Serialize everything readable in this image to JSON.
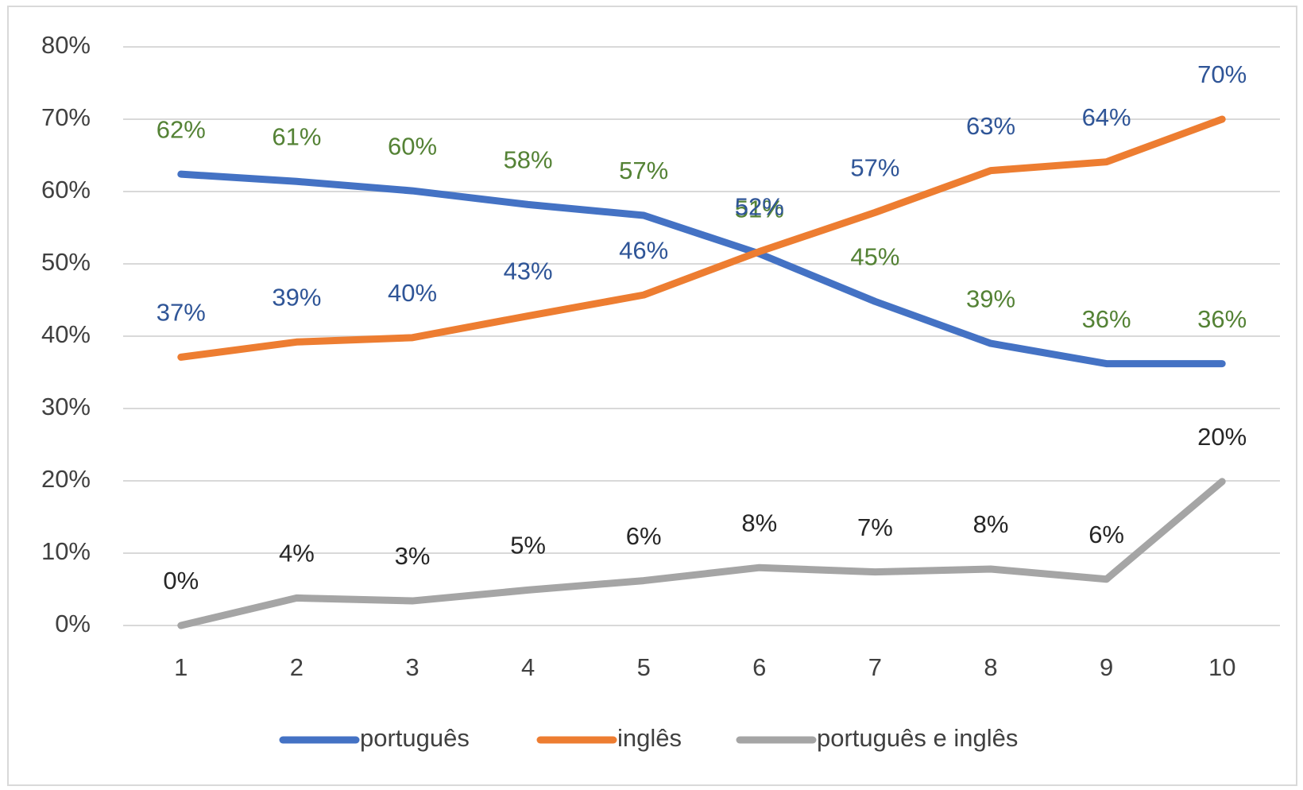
{
  "chart_data": {
    "type": "line",
    "categories": [
      "1",
      "2",
      "3",
      "4",
      "5",
      "6",
      "7",
      "8",
      "9",
      "10"
    ],
    "series": [
      {
        "name": "português",
        "color": "#4472c4",
        "label_color": "#548235",
        "values": [
          62.4,
          61.4,
          60.1,
          58.2,
          56.7,
          51.4,
          44.8,
          39.0,
          36.2,
          36.2
        ],
        "value_labels": [
          "62%",
          "61%",
          "60%",
          "58%",
          "57%",
          "51%",
          "45%",
          "39%",
          "36%",
          "36%"
        ]
      },
      {
        "name": "inglês",
        "color": "#ed7d31",
        "label_color": "#2f5597",
        "values": [
          37.1,
          39.2,
          39.8,
          42.8,
          45.7,
          51.7,
          57.1,
          62.9,
          64.1,
          70.0
        ],
        "value_labels": [
          "37%",
          "39%",
          "40%",
          "43%",
          "46%",
          "52%",
          "57%",
          "63%",
          "64%",
          "70%"
        ]
      },
      {
        "name": "português e inglês",
        "color": "#a5a5a5",
        "label_color": "#262626",
        "values": [
          0,
          3.8,
          3.4,
          4.9,
          6.2,
          8.0,
          7.4,
          7.8,
          6.4,
          19.9
        ],
        "value_labels": [
          "0%",
          "4%",
          "3%",
          "5%",
          "6%",
          "8%",
          "7%",
          "8%",
          "6%",
          "20%"
        ]
      }
    ],
    "ylim": [
      0,
      80
    ],
    "yticks": [
      {
        "value": 0,
        "label": "0%"
      },
      {
        "value": 10,
        "label": "10%"
      },
      {
        "value": 20,
        "label": "20%"
      },
      {
        "value": 30,
        "label": "30%"
      },
      {
        "value": 40,
        "label": "40%"
      },
      {
        "value": 50,
        "label": "50%"
      },
      {
        "value": 60,
        "label": "60%"
      },
      {
        "value": 70,
        "label": "70%"
      },
      {
        "value": 80,
        "label": "80%"
      }
    ],
    "grid": true,
    "legend": "bottom"
  }
}
